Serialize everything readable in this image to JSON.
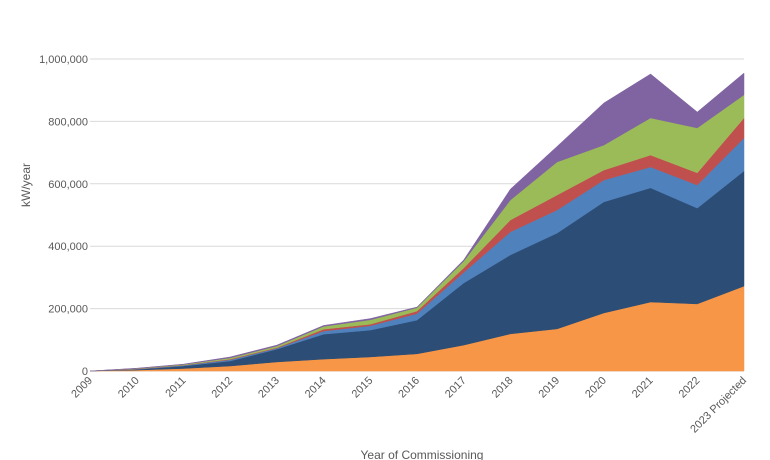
{
  "chart_data": {
    "type": "area",
    "stacked": true,
    "title": "",
    "xlabel": "Year of Commissioning",
    "ylabel": "kW/year",
    "ylim": [
      0,
      1000000
    ],
    "yticks": [
      0,
      200000,
      400000,
      600000,
      800000,
      1000000
    ],
    "ytick_labels": [
      "0",
      "200,000",
      "400,000",
      "600,000",
      "800,000",
      "1,000,000"
    ],
    "grid": true,
    "legend": "none visible",
    "categories": [
      "2009",
      "2010",
      "2011",
      "2012",
      "2013",
      "2014",
      "2015",
      "2016",
      "2017",
      "2018",
      "2019",
      "2020",
      "2021",
      "2022",
      "2023 Projected"
    ],
    "series": [
      {
        "color": "#F79646",
        "values": [
          0,
          3000,
          8000,
          16000,
          29000,
          38000,
          45000,
          55000,
          83000,
          119000,
          135000,
          186000,
          221000,
          215000,
          272000
        ]
      },
      {
        "color": "#2C4D75",
        "values": [
          0,
          2000,
          8000,
          16000,
          41000,
          80000,
          86000,
          108000,
          199000,
          253000,
          307000,
          356000,
          366000,
          307000,
          369000
        ]
      },
      {
        "color": "#4F81BD",
        "values": [
          0,
          1000,
          2000,
          4000,
          3000,
          10000,
          14000,
          21000,
          34000,
          74000,
          74000,
          70000,
          67000,
          74000,
          106000
        ]
      },
      {
        "color": "#C0504D",
        "values": [
          0,
          1000,
          1000,
          2000,
          2000,
          6000,
          5000,
          8000,
          14000,
          38000,
          48000,
          32000,
          38000,
          39000,
          64000
        ]
      },
      {
        "color": "#9BBB59",
        "values": [
          0,
          1000,
          2000,
          4000,
          5000,
          9000,
          14000,
          11000,
          22000,
          64000,
          106000,
          80000,
          119000,
          144000,
          74000
        ]
      },
      {
        "color": "#8064A2",
        "values": [
          0,
          1000,
          1000,
          3000,
          3000,
          3000,
          4000,
          2000,
          4000,
          35000,
          50000,
          135000,
          141000,
          51000,
          70000
        ]
      }
    ]
  }
}
